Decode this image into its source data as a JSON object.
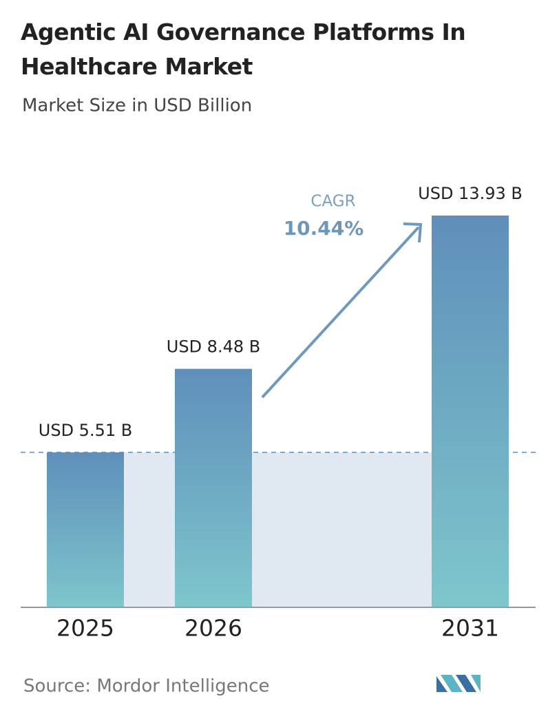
{
  "chart_data": {
    "type": "bar",
    "title": "Agentic AI Governance Platforms In Healthcare Market",
    "subtitle": "Market Size in USD Billion",
    "categories": [
      "2025",
      "2026",
      "2031"
    ],
    "values": [
      5.51,
      8.48,
      13.93
    ],
    "value_labels": [
      "USD 5.51 B",
      "USD 8.48 B",
      "USD 13.93 B"
    ],
    "annotation": {
      "label": "CAGR",
      "value": "10.44%"
    },
    "source": "Source: Mordor Intelligence"
  }
}
